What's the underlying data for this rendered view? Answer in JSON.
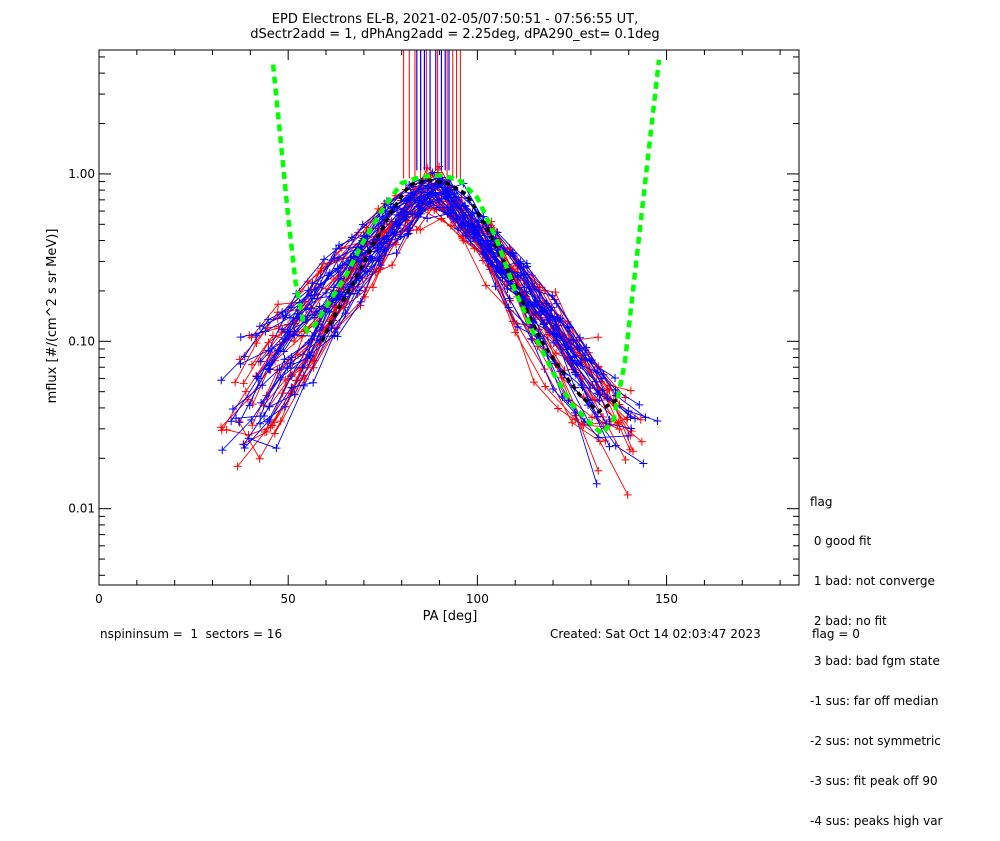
{
  "title_line1": "EPD Electrons EL-B, 2021-02-05/07:50:51 - 07:56:55 UT,",
  "title_line2": "dSectr2add = 1, dPhAng2add = 2.25deg, dPA290_est=   0.1deg",
  "legend": {
    "title": "flag",
    "items": [
      " 0 good fit",
      " 1 bad: not converge",
      " 2 bad: no fit",
      " 3 bad: bad fgm state",
      "-1 sus: far off median",
      "-2 sus: not symmetric",
      "-3 sus: fit peak off 90",
      "-4 sus: peaks high var"
    ]
  },
  "footer": {
    "left": "nspininsum =  1  sectors = 16",
    "created": "Created: Sat Oct 14 02:03:47 2023",
    "flag": "flag = 0"
  },
  "colors": {
    "red": "#ff0000",
    "blue": "#0000ff",
    "green": "#00ff00",
    "black": "#000000"
  },
  "chart_data": {
    "type": "line",
    "title": "EPD Electrons EL-B, 2021-02-05/07:50:51 - 07:56:55 UT,",
    "subtitle": "dSectr2add = 1, dPhAng2add = 2.25deg, dPA290_est=   0.1deg",
    "xlabel": "PA [deg]",
    "ylabel": "mflux [#/(cm^2 s sr MeV)]",
    "xlim": [
      0,
      185
    ],
    "ylim": [
      0.0035,
      5.5
    ],
    "yscale": "log",
    "xticks": [
      "0",
      "50",
      "100",
      "150"
    ],
    "yticks": [
      "0.01",
      "0.10",
      "1.00"
    ],
    "fit_curve": {
      "color": "green",
      "x": [
        46,
        48,
        50,
        52,
        54,
        55,
        57,
        60,
        65,
        70,
        75,
        80,
        85,
        90,
        95,
        100,
        105,
        110,
        115,
        120,
        125,
        130,
        133,
        136,
        139,
        142,
        145,
        148
      ],
      "y": [
        4.5,
        1.6,
        0.55,
        0.22,
        0.13,
        0.115,
        0.125,
        0.16,
        0.24,
        0.4,
        0.62,
        0.88,
        0.96,
        0.98,
        0.93,
        0.72,
        0.41,
        0.2,
        0.11,
        0.065,
        0.042,
        0.032,
        0.028,
        0.034,
        0.075,
        0.3,
        1.2,
        4.8
      ]
    },
    "median_curve": {
      "color": "black",
      "x": [
        59,
        62,
        67,
        72,
        77,
        82,
        87,
        92,
        97,
        102,
        107,
        112,
        117,
        122,
        127,
        132,
        137
      ],
      "y": [
        0.1,
        0.14,
        0.22,
        0.36,
        0.58,
        0.86,
        0.92,
        0.88,
        0.76,
        0.5,
        0.3,
        0.17,
        0.1,
        0.068,
        0.048,
        0.038,
        0.045
      ]
    },
    "peak_markers": {
      "red_x": [
        80.5,
        82,
        83.5,
        85,
        86.5,
        89.5,
        92,
        93.5,
        94.5,
        95.5
      ],
      "blue_x": [
        84,
        85,
        86,
        87.5,
        89,
        90.5,
        91.5,
        92.5
      ],
      "y_bottom": 1.05
    },
    "series_red": {
      "color": "red",
      "symbol": "plus",
      "lines": 26
    },
    "series_blue": {
      "color": "blue",
      "symbol": "plus",
      "lines": 28
    }
  }
}
